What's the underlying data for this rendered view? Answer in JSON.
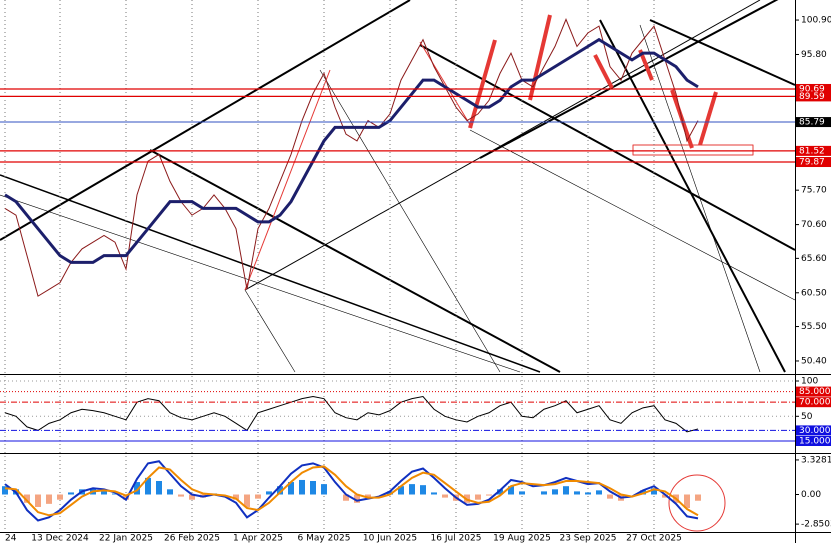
{
  "chart_data": [
    {
      "type": "line",
      "categories": [
        "24",
        null,
        null,
        null,
        null,
        "13 Dec 2024",
        null,
        null,
        null,
        null,
        null,
        "22 Jan 2025",
        null,
        null,
        null,
        null,
        null,
        "26 Feb 2025",
        null,
        null,
        null,
        null,
        null,
        "1 Apr 2025",
        null,
        null,
        null,
        null,
        null,
        "6 May 2025",
        null,
        null,
        null,
        null,
        null,
        "10 Jun 2025",
        null,
        null,
        null,
        null,
        null,
        "16 Jul 2025",
        null,
        null,
        null,
        null,
        null,
        "19 Aug 2025",
        null,
        null,
        null,
        null,
        null,
        "23 Sep 2025",
        null,
        null,
        null,
        null,
        null,
        "27 Oct 2025",
        null,
        null,
        null,
        null
      ],
      "series": [
        {
          "color": "#8b1a1a",
          "values": [
            73,
            72,
            66,
            60,
            61,
            62,
            65,
            67,
            68,
            69,
            68,
            64,
            75,
            80,
            81,
            77,
            74,
            72,
            73,
            75,
            73,
            70,
            61,
            70,
            73,
            77,
            81,
            86,
            90,
            93,
            88,
            84,
            83,
            86,
            85,
            87,
            92,
            95,
            98,
            94,
            91,
            88,
            86,
            87,
            89,
            93,
            96,
            92,
            91,
            94,
            97,
            101,
            97,
            99,
            100,
            94,
            92,
            96,
            98,
            100,
            95,
            90,
            83,
            86
          ]
        },
        {
          "color": "#1c1f6b",
          "values": [
            75,
            74,
            72,
            70,
            68,
            66,
            65,
            65,
            65,
            66,
            66,
            66,
            68,
            70,
            72,
            74,
            74,
            74,
            73,
            73,
            73,
            73,
            72,
            71,
            71,
            72,
            74,
            77,
            80,
            83,
            85,
            85,
            85,
            85,
            85,
            86,
            88,
            90,
            92,
            92,
            91,
            90,
            89,
            88,
            88,
            89,
            91,
            92,
            92,
            93,
            94,
            95,
            96,
            97,
            98,
            97,
            96,
            95,
            96,
            96,
            95,
            94,
            92,
            91
          ]
        }
      ],
      "ylim": [
        48.47,
        103.87
      ],
      "yticks": [
        {
          "value": 100.9,
          "label": "100.90"
        },
        {
          "value": 95.8,
          "label": "95.80"
        },
        {
          "value": 75.7,
          "label": "75.70"
        },
        {
          "value": 70.6,
          "label": "70.60"
        },
        {
          "value": 65.6,
          "label": "65.60"
        },
        {
          "value": 60.5,
          "label": "60.50"
        },
        {
          "value": 55.5,
          "label": "55.50"
        },
        {
          "value": 50.4,
          "label": "50.40"
        }
      ],
      "levels": [
        {
          "value": 90.69,
          "color": "#e00000"
        },
        {
          "value": 89.59,
          "color": "#e00000"
        },
        {
          "value": 85.79,
          "color": "#000000"
        },
        {
          "value": 81.52,
          "color": "#e00000"
        },
        {
          "value": 79.87,
          "color": "#e00000"
        }
      ],
      "grid": true
    },
    {
      "type": "line",
      "series": [
        {
          "color": "#000000",
          "values": [
            55,
            50,
            35,
            30,
            40,
            45,
            55,
            60,
            58,
            55,
            50,
            45,
            70,
            75,
            72,
            55,
            48,
            45,
            50,
            55,
            50,
            40,
            30,
            55,
            60,
            65,
            70,
            75,
            78,
            75,
            55,
            48,
            45,
            55,
            52,
            58,
            70,
            75,
            78,
            60,
            50,
            45,
            42,
            50,
            55,
            65,
            70,
            50,
            48,
            60,
            65,
            72,
            55,
            60,
            65,
            45,
            40,
            55,
            62,
            65,
            45,
            40,
            28,
            32
          ]
        }
      ],
      "ylim": [
        -2,
        108.5
      ],
      "yticks": [
        100,
        50
      ],
      "levels": [
        {
          "value": 85,
          "label": "85.0000",
          "color": "#e00000"
        },
        {
          "value": 70,
          "label": "70.0000",
          "color": "#e00000"
        },
        {
          "value": 30,
          "label": "30.0000",
          "color": "#1010e0"
        },
        {
          "value": 15,
          "label": "15.0000",
          "color": "#1010e0"
        }
      ]
    },
    {
      "type": "bar",
      "values": [
        0.8,
        0.5,
        -0.8,
        -1.2,
        -0.9,
        -0.5,
        0.2,
        0.5,
        0.6,
        0.4,
        0.1,
        -0.5,
        1.2,
        1.6,
        1.3,
        0.5,
        -0.2,
        -0.5,
        -0.3,
        0.1,
        0.0,
        -0.5,
        -1.2,
        -0.4,
        0.3,
        0.8,
        1.2,
        1.4,
        1.3,
        1.0,
        0.0,
        -0.6,
        -0.8,
        -0.3,
        0.0,
        0.3,
        0.8,
        1.0,
        0.9,
        0.2,
        -0.3,
        -0.6,
        -0.8,
        -0.5,
        -0.1,
        0.5,
        0.8,
        0.3,
        0.0,
        0.3,
        0.5,
        0.8,
        0.3,
        0.2,
        0.4,
        -0.4,
        -0.6,
        0.0,
        0.4,
        0.6,
        -0.3,
        -0.8,
        -1.3,
        -0.6
      ],
      "color": "#1e88e5",
      "negative_color": "#f4a582",
      "series": [
        {
          "color": "#1030c0",
          "values": [
            1.0,
            0.2,
            -1.5,
            -2.5,
            -2.2,
            -1.5,
            -0.5,
            0.3,
            0.6,
            0.5,
            0.2,
            -0.5,
            1.5,
            3.0,
            3.2,
            2.0,
            0.8,
            0.0,
            -0.2,
            0.0,
            -0.2,
            -0.8,
            -2.2,
            -1.5,
            -0.3,
            0.8,
            2.0,
            2.8,
            3.0,
            2.6,
            1.2,
            0.0,
            -0.6,
            -0.4,
            -0.2,
            0.3,
            1.3,
            2.2,
            2.5,
            1.6,
            0.6,
            -0.3,
            -1.0,
            -0.9,
            -0.5,
            0.4,
            1.4,
            1.2,
            0.8,
            0.9,
            1.2,
            1.6,
            1.3,
            1.0,
            1.1,
            0.3,
            -0.3,
            -0.2,
            0.4,
            0.8,
            0.0,
            -0.9,
            -2.1,
            -2.3
          ]
        },
        {
          "color": "#f08a00",
          "values": [
            0.6,
            0.5,
            -0.6,
            -1.7,
            -2.0,
            -1.8,
            -1.0,
            -0.2,
            0.3,
            0.4,
            0.3,
            -0.1,
            0.4,
            1.6,
            2.6,
            2.4,
            1.4,
            0.5,
            0.1,
            0.0,
            -0.1,
            -0.4,
            -1.3,
            -1.5,
            -0.8,
            0.2,
            1.2,
            2.1,
            2.6,
            2.7,
            1.9,
            0.8,
            0.0,
            -0.3,
            -0.3,
            0.0,
            0.8,
            1.6,
            2.1,
            1.9,
            1.1,
            0.3,
            -0.5,
            -0.8,
            -0.7,
            -0.1,
            0.8,
            1.1,
            1.0,
            0.9,
            1.0,
            1.3,
            1.3,
            1.2,
            1.1,
            0.6,
            0.0,
            -0.2,
            0.1,
            0.5,
            0.3,
            -0.4,
            -1.4,
            -2.0
          ]
        }
      ],
      "ylim": [
        -3.61,
        3.9
      ],
      "yticks": [
        3.3281,
        {
          "value": 0,
          "label": "0.00"
        },
        -2.8503
      ]
    }
  ]
}
